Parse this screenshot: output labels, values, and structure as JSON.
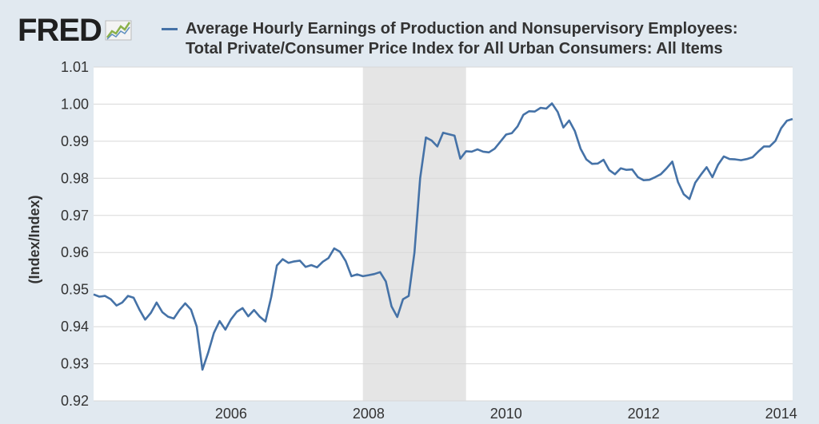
{
  "logo": {
    "text": "FRED",
    "icon": "fred-chart-icon"
  },
  "legend": {
    "line1": "Average Hourly Earnings of Production and Nonsupervisory Employees:",
    "line2": "Total Private/Consumer Price Index for All Urban Consumers: All Items",
    "color": "#4572a7"
  },
  "chart_data": {
    "type": "line",
    "title": "",
    "ylabel": "(Index/Index)",
    "xlabel": "",
    "ylim": [
      0.92,
      1.01
    ],
    "xlim": [
      "2004-01",
      "2014-03"
    ],
    "yticks": [
      "0.92",
      "0.93",
      "0.94",
      "0.95",
      "0.96",
      "0.97",
      "0.98",
      "0.99",
      "1.00",
      "1.01"
    ],
    "xticks": [
      "2006",
      "2008",
      "2010",
      "2012",
      "2014"
    ],
    "grid": true,
    "recession_shading": {
      "start": "2007-12",
      "end": "2009-06",
      "color": "#e5e5e5"
    },
    "series": [
      {
        "color": "#4572a7",
        "x": [
          "2004-01",
          "2004-02",
          "2004-03",
          "2004-04",
          "2004-05",
          "2004-06",
          "2004-07",
          "2004-08",
          "2004-09",
          "2004-10",
          "2004-11",
          "2004-12",
          "2005-01",
          "2005-02",
          "2005-03",
          "2005-04",
          "2005-05",
          "2005-06",
          "2005-07",
          "2005-08",
          "2005-09",
          "2005-10",
          "2005-11",
          "2005-12",
          "2006-01",
          "2006-02",
          "2006-03",
          "2006-04",
          "2006-05",
          "2006-06",
          "2006-07",
          "2006-08",
          "2006-09",
          "2006-10",
          "2006-11",
          "2006-12",
          "2007-01",
          "2007-02",
          "2007-03",
          "2007-04",
          "2007-05",
          "2007-06",
          "2007-07",
          "2007-08",
          "2007-09",
          "2007-10",
          "2007-11",
          "2007-12",
          "2008-01",
          "2008-02",
          "2008-03",
          "2008-04",
          "2008-05",
          "2008-06",
          "2008-07",
          "2008-08",
          "2008-09",
          "2008-10",
          "2008-11",
          "2008-12",
          "2009-01",
          "2009-02",
          "2009-03",
          "2009-04",
          "2009-05",
          "2009-06",
          "2009-07",
          "2009-08",
          "2009-09",
          "2009-10",
          "2009-11",
          "2009-12",
          "2010-01",
          "2010-02",
          "2010-03",
          "2010-04",
          "2010-05",
          "2010-06",
          "2010-07",
          "2010-08",
          "2010-09",
          "2010-10",
          "2010-11",
          "2010-12",
          "2011-01",
          "2011-02",
          "2011-03",
          "2011-04",
          "2011-05",
          "2011-06",
          "2011-07",
          "2011-08",
          "2011-09",
          "2011-10",
          "2011-11",
          "2011-12",
          "2012-01",
          "2012-02",
          "2012-03",
          "2012-04",
          "2012-05",
          "2012-06",
          "2012-07",
          "2012-08",
          "2012-09",
          "2012-10",
          "2012-11",
          "2012-12",
          "2013-01",
          "2013-02",
          "2013-03",
          "2013-04",
          "2013-05",
          "2013-06",
          "2013-07",
          "2013-08",
          "2013-09",
          "2013-10",
          "2013-11",
          "2013-12",
          "2014-01",
          "2014-02",
          "2014-03"
        ],
        "values": [
          0.9487,
          0.9481,
          0.9483,
          0.9474,
          0.9457,
          0.9465,
          0.9483,
          0.9478,
          0.9446,
          0.9419,
          0.9437,
          0.9465,
          0.9439,
          0.9427,
          0.9422,
          0.9445,
          0.9463,
          0.9446,
          0.94,
          0.9284,
          0.933,
          0.9383,
          0.9415,
          0.9392,
          0.942,
          0.944,
          0.945,
          0.9428,
          0.9445,
          0.9427,
          0.9414,
          0.948,
          0.9565,
          0.9582,
          0.9572,
          0.9576,
          0.9578,
          0.9561,
          0.9566,
          0.956,
          0.9575,
          0.9585,
          0.9611,
          0.9602,
          0.9577,
          0.9536,
          0.9541,
          0.9536,
          0.9539,
          0.9542,
          0.9547,
          0.9522,
          0.9455,
          0.9426,
          0.9474,
          0.9483,
          0.96,
          0.98,
          0.991,
          0.9902,
          0.9886,
          0.9923,
          0.9919,
          0.9915,
          0.9853,
          0.9873,
          0.9872,
          0.9878,
          0.9872,
          0.987,
          0.988,
          0.9899,
          0.9918,
          0.9922,
          0.994,
          0.9971,
          0.9981,
          0.998,
          0.999,
          0.9988,
          1.0002,
          0.9979,
          0.9937,
          0.9956,
          0.9927,
          0.988,
          0.9851,
          0.9839,
          0.984,
          0.985,
          0.9822,
          0.9811,
          0.9827,
          0.9823,
          0.9824,
          0.9803,
          0.9795,
          0.9796,
          0.9803,
          0.9811,
          0.9827,
          0.9845,
          0.979,
          0.9757,
          0.9744,
          0.9788,
          0.981,
          0.983,
          0.9803,
          0.9837,
          0.9859,
          0.9852,
          0.9851,
          0.9849,
          0.9852,
          0.9857,
          0.9872,
          0.9886,
          0.9886,
          0.9901,
          0.9935,
          0.9955,
          0.996
        ]
      }
    ]
  }
}
